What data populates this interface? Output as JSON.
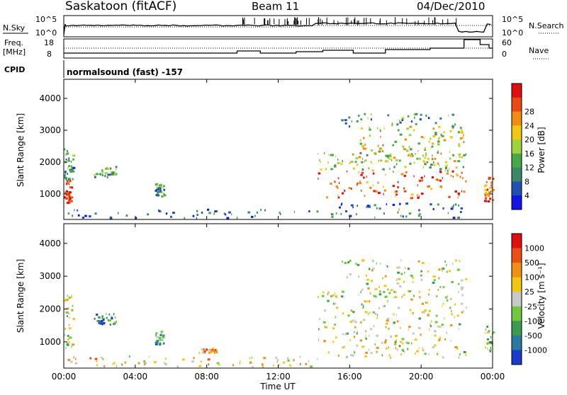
{
  "header": {
    "station": "Saskatoon (fitACF)",
    "beam": "Beam 11",
    "date": "04/Dec/2010"
  },
  "status_panels": {
    "nsky_label": "N.Sky",
    "nsky_ticks": [
      "10^5",
      "10^0"
    ],
    "nsearch_label": "N.Search",
    "nsearch_ticks": [
      "10^5",
      "10^0"
    ],
    "freq_label_1": "Freq.",
    "freq_label_2": "[MHz]",
    "freq_ticks": [
      "18",
      "8"
    ],
    "nave_label": "Nave",
    "nave_ticks": [
      "60",
      "0"
    ],
    "cpid_label": "CPID",
    "cpid_value": "normalsound (fast) -157"
  },
  "x_axis": {
    "label": "Time UT",
    "ticks": [
      "00:00",
      "04:00",
      "08:00",
      "12:00",
      "16:00",
      "20:00",
      "00:00"
    ]
  },
  "chart_data": [
    {
      "type": "heatmap",
      "panel": "power",
      "ylabel": "Slant Range [km]",
      "yticks": [
        "1000",
        "2000",
        "3000",
        "4000"
      ],
      "ylim": [
        200,
        4600
      ],
      "xlim_hours": [
        0,
        24
      ],
      "colorbar_label": "Power [dB]",
      "colorbar_ticks": [
        "4",
        "8",
        "12",
        "16",
        "20",
        "24",
        "28"
      ],
      "colors": [
        "#1414e6",
        "#2050b0",
        "#3a8a6a",
        "#48a848",
        "#9ed23c",
        "#f0c814",
        "#f08c14",
        "#e84a14",
        "#e01010"
      ],
      "regions": [
        {
          "t": [
            0.0,
            0.4
          ],
          "r": [
            700,
            1400
          ],
          "level": 0.9
        },
        {
          "t": [
            0.0,
            0.5
          ],
          "r": [
            1400,
            2400
          ],
          "level": 0.3
        },
        {
          "t": [
            1.6,
            3.0
          ],
          "r": [
            1500,
            1850
          ],
          "level": 0.4
        },
        {
          "t": [
            5.1,
            5.6
          ],
          "r": [
            900,
            1300
          ],
          "level": 0.3
        },
        {
          "t": [
            0.1,
            14.2
          ],
          "r": [
            220,
            500
          ],
          "level": 0.2
        },
        {
          "t": [
            14.2,
            22.5
          ],
          "r": [
            850,
            1700
          ],
          "level": 0.85
        },
        {
          "t": [
            14.2,
            22.5
          ],
          "r": [
            1700,
            2300
          ],
          "level": 0.45
        },
        {
          "t": [
            16.0,
            22.5
          ],
          "r": [
            1900,
            3100
          ],
          "level": 0.55
        },
        {
          "t": [
            15.5,
            22.0
          ],
          "r": [
            3100,
            3500
          ],
          "level": 0.3
        },
        {
          "t": [
            14.2,
            22.5
          ],
          "r": [
            220,
            700
          ],
          "level": 0.25
        },
        {
          "t": [
            23.5,
            24.0
          ],
          "r": [
            700,
            1500
          ],
          "level": 0.8
        }
      ]
    },
    {
      "type": "heatmap",
      "panel": "velocity",
      "ylabel": "Slant Range [km]",
      "yticks": [
        "1000",
        "2000",
        "3000",
        "4000"
      ],
      "ylim": [
        200,
        4600
      ],
      "xlim_hours": [
        0,
        24
      ],
      "colorbar_label": "Velocity [m s⁻¹]",
      "colorbar_ticks": [
        "1000",
        "500",
        "100",
        "25",
        "-25",
        "-100",
        "-500",
        "-1000"
      ],
      "colors": [
        "#1a3cc8",
        "#2a7aa0",
        "#3a9a50",
        "#70c840",
        "#c8c8c8",
        "#f0c814",
        "#f09014",
        "#e85014",
        "#e01010"
      ],
      "regions": [
        {
          "t": [
            0.0,
            0.5
          ],
          "r": [
            700,
            2400
          ],
          "level": 0.5
        },
        {
          "t": [
            1.6,
            3.0
          ],
          "r": [
            1500,
            1850
          ],
          "level": 0.25
        },
        {
          "t": [
            5.1,
            5.6
          ],
          "r": [
            900,
            1300
          ],
          "level": 0.3
        },
        {
          "t": [
            7.5,
            8.5
          ],
          "r": [
            650,
            800
          ],
          "level": 0.7
        },
        {
          "t": [
            0.1,
            14.5
          ],
          "r": [
            220,
            550
          ],
          "level": 0.6
        },
        {
          "t": [
            14.2,
            22.5
          ],
          "r": [
            500,
            2500
          ],
          "level": 0.5
        },
        {
          "t": [
            15.5,
            22.5
          ],
          "r": [
            2500,
            3500
          ],
          "level": 0.5
        },
        {
          "t": [
            23.5,
            24.0
          ],
          "r": [
            700,
            1500
          ],
          "level": 0.4
        }
      ]
    }
  ]
}
